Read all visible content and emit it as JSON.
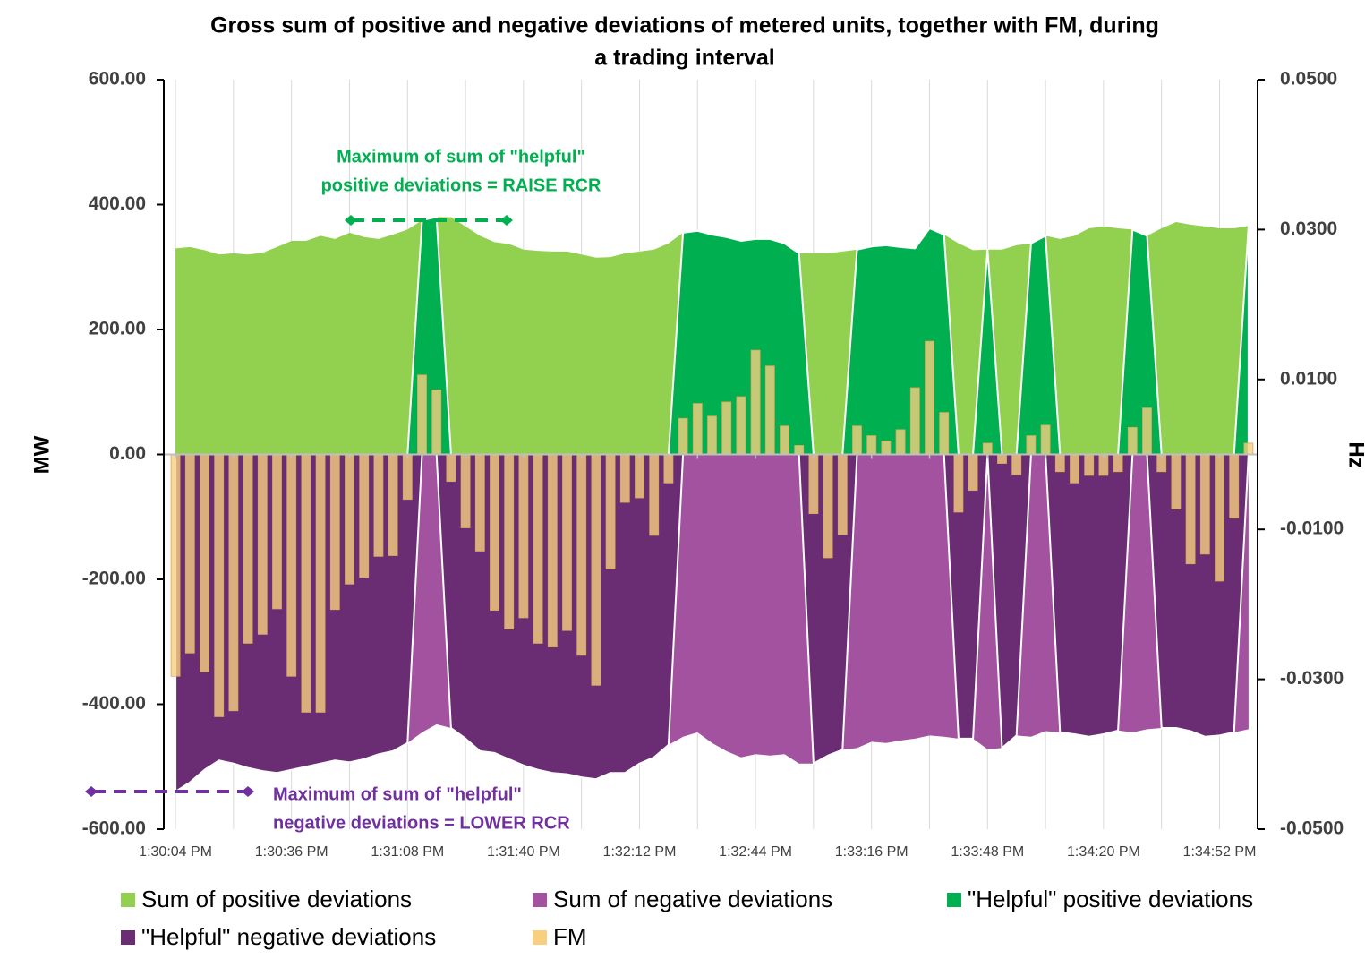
{
  "chart_data": {
    "type": "area",
    "title": [
      "Gross sum of positive and negative deviations of metered units, together with FM, during",
      "a trading interval"
    ],
    "y_label": "MW",
    "y2_label": "Hz",
    "categories": [
      "1:30:04 PM",
      null,
      null,
      null,
      null,
      null,
      null,
      null,
      "1:30:36 PM",
      null,
      null,
      null,
      null,
      null,
      null,
      null,
      "1:31:08 PM",
      null,
      null,
      null,
      null,
      null,
      null,
      null,
      "1:31:40 PM",
      null,
      null,
      null,
      null,
      null,
      null,
      null,
      "1:32:12 PM",
      null,
      null,
      null,
      null,
      null,
      null,
      null,
      "1:32:44 PM",
      null,
      null,
      null,
      null,
      null,
      null,
      null,
      "1:33:16 PM",
      null,
      null,
      null,
      null,
      null,
      null,
      null,
      "1:33:48 PM",
      null,
      null,
      null,
      null,
      null,
      null,
      null,
      "1:34:20 PM",
      null,
      null,
      null,
      null,
      null,
      null,
      null,
      "1:34:52 PM",
      null,
      null
    ],
    "ylim": [
      -600,
      600
    ],
    "yticks": [
      {
        "value": -600,
        "label": "-600.00"
      },
      {
        "value": -400,
        "label": "-400.00"
      },
      {
        "value": -200,
        "label": "-200.00"
      },
      {
        "value": 0,
        "label": "0.00"
      },
      {
        "value": 200,
        "label": "200.00"
      },
      {
        "value": 400,
        "label": "400.00"
      },
      {
        "value": 600,
        "label": "600.00"
      }
    ],
    "y2lim": [
      -0.05,
      0.05
    ],
    "y2ticks": [
      {
        "value": -0.05,
        "label": "-0.0500"
      },
      {
        "value": -0.03,
        "label": "-0.0300"
      },
      {
        "value": -0.01,
        "label": "-0.0100"
      },
      {
        "value": 0.01,
        "label": "0.0100"
      },
      {
        "value": 0.03,
        "label": "0.0300"
      },
      {
        "value": 0.05,
        "label": "0.0500"
      }
    ],
    "grid": "x",
    "series": [
      {
        "name": "Sum of positive deviations",
        "type": "area",
        "color": "#92d050",
        "values": [
          330,
          332,
          327,
          320,
          322,
          320,
          323,
          332,
          342,
          342,
          350,
          345,
          355,
          348,
          345,
          352,
          360,
          375,
          380,
          380,
          365,
          350,
          340,
          337,
          328,
          326,
          325,
          325,
          320,
          315,
          316,
          322,
          325,
          328,
          338,
          355,
          358,
          352,
          348,
          342,
          345,
          345,
          338,
          322,
          322,
          322,
          325,
          328,
          333,
          335,
          332,
          330,
          362,
          352,
          338,
          327,
          328,
          328,
          335,
          338,
          350,
          345,
          350,
          362,
          365,
          362,
          360,
          350,
          362,
          372,
          368,
          365,
          362,
          362,
          366
        ]
      },
      {
        "name": "Sum of negative deviations",
        "type": "area",
        "color": "#a2529e",
        "values": [
          -540,
          -525,
          -505,
          -490,
          -495,
          -502,
          -507,
          -510,
          -505,
          -500,
          -495,
          -490,
          -493,
          -488,
          -480,
          -475,
          -462,
          -445,
          -432,
          -438,
          -455,
          -475,
          -478,
          -488,
          -498,
          -505,
          -510,
          -512,
          -517,
          -520,
          -510,
          -510,
          -495,
          -485,
          -465,
          -452,
          -445,
          -462,
          -475,
          -485,
          -480,
          -482,
          -480,
          -495,
          -495,
          -482,
          -473,
          -470,
          -460,
          -462,
          -458,
          -455,
          -450,
          -452,
          -455,
          -455,
          -472,
          -470,
          -450,
          -452,
          -443,
          -445,
          -448,
          -452,
          -448,
          -442,
          -445,
          -440,
          -438,
          -438,
          -443,
          -452,
          -450,
          -445,
          -440
        ]
      },
      {
        "name": "\"Helpful\" positive deviations",
        "type": "area",
        "color": "#00b050",
        "values": [
          0,
          0,
          0,
          0,
          0,
          0,
          0,
          0,
          0,
          0,
          0,
          0,
          0,
          0,
          0,
          0,
          0,
          375,
          380,
          0,
          0,
          0,
          0,
          0,
          0,
          0,
          0,
          0,
          0,
          0,
          0,
          0,
          0,
          0,
          0,
          355,
          358,
          352,
          348,
          342,
          345,
          345,
          338,
          322,
          0,
          0,
          0,
          328,
          333,
          335,
          332,
          330,
          362,
          352,
          0,
          0,
          328,
          0,
          0,
          338,
          350,
          0,
          0,
          0,
          0,
          0,
          360,
          350,
          0,
          0,
          0,
          0,
          0,
          0,
          366
        ]
      },
      {
        "name": "\"Helpful\" negative deviations",
        "type": "area",
        "color": "#6a2d73",
        "values": [
          -540,
          -525,
          -505,
          -490,
          -495,
          -502,
          -507,
          -510,
          -505,
          -500,
          -495,
          -490,
          -493,
          -488,
          -480,
          -475,
          -462,
          0,
          0,
          -438,
          -455,
          -475,
          -478,
          -488,
          -498,
          -505,
          -510,
          -512,
          -517,
          -520,
          -510,
          -510,
          -495,
          -485,
          -465,
          0,
          0,
          0,
          0,
          0,
          0,
          0,
          0,
          0,
          -495,
          -482,
          -473,
          0,
          0,
          0,
          0,
          0,
          0,
          0,
          -455,
          -455,
          0,
          -470,
          -450,
          0,
          0,
          -445,
          -448,
          -452,
          -448,
          -442,
          0,
          0,
          -438,
          -438,
          -443,
          -452,
          -450,
          -445,
          0
        ]
      },
      {
        "name": "FM",
        "type": "bar",
        "axis": "y2",
        "color": "#f8cf7f",
        "values": [
          -0.0296,
          -0.0265,
          -0.029,
          -0.035,
          -0.0342,
          -0.0252,
          -0.024,
          -0.0206,
          -0.0296,
          -0.0344,
          -0.0344,
          -0.0207,
          -0.0173,
          -0.0164,
          -0.0136,
          -0.0135,
          -0.006,
          0.0106,
          0.0086,
          -0.0036,
          -0.0098,
          -0.0129,
          -0.0208,
          -0.0233,
          -0.0218,
          -0.0252,
          -0.0257,
          -0.0235,
          -0.0268,
          -0.0308,
          -0.0153,
          -0.0064,
          -0.0058,
          -0.0108,
          -0.0038,
          0.0048,
          0.0068,
          0.0051,
          0.007,
          0.0077,
          0.0139,
          0.0118,
          0.0038,
          0.0012,
          -0.0079,
          -0.0138,
          -0.0107,
          0.0038,
          0.0025,
          0.0018,
          0.0033,
          0.0089,
          0.0151,
          0.0056,
          -0.0077,
          -0.0048,
          0.0015,
          -0.0012,
          -0.0027,
          0.0025,
          0.0039,
          -0.0023,
          -0.0038,
          -0.0028,
          -0.0028,
          -0.0023,
          0.0036,
          0.0062,
          -0.0023,
          -0.0073,
          -0.0146,
          -0.0133,
          -0.0169,
          -0.0085,
          0.0015
        ]
      }
    ],
    "annotations": [
      {
        "text": [
          "Maximum of sum of \"helpful\"",
          "positive deviations = RAISE RCR"
        ],
        "color": "#00b050"
      },
      {
        "text": [
          "Maximum of sum of \"helpful\"",
          "negative deviations = LOWER RCR"
        ],
        "color": "#7030a0"
      }
    ]
  }
}
